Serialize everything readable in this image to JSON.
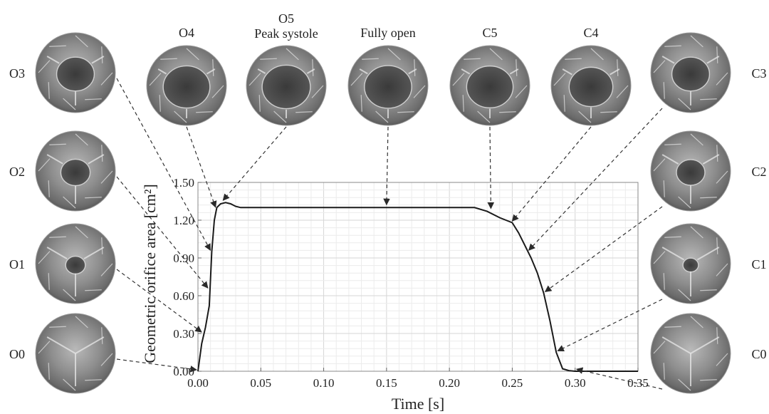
{
  "chart_data": {
    "type": "line",
    "xlabel": "Time [s]",
    "ylabel": "Geometric orifice area [cm²]",
    "xlim": [
      0,
      0.35
    ],
    "ylim": [
      0,
      1.5
    ],
    "xticks": [
      "0.00",
      "0.05",
      "0.10",
      "0.15",
      "0.20",
      "0.25",
      "0.30",
      "0.35"
    ],
    "yticks": [
      "0.00",
      "0.30",
      "0.60",
      "0.90",
      "1.20",
      "1.50"
    ],
    "grid": true,
    "line_color": "#1a1a1a",
    "series": [
      {
        "x": [
          0,
          0.003,
          0.006,
          0.009,
          0.011,
          0.013,
          0.015,
          0.018,
          0.022,
          0.026,
          0.03,
          0.034,
          0.04,
          0.06,
          0.1,
          0.15,
          0.2,
          0.22,
          0.23,
          0.24,
          0.25,
          0.255,
          0.26,
          0.265,
          0.27,
          0.275,
          0.28,
          0.285,
          0.29,
          0.295,
          0.3,
          0.35
        ],
        "y": [
          0.0,
          0.22,
          0.35,
          0.52,
          0.95,
          1.2,
          1.3,
          1.33,
          1.34,
          1.33,
          1.31,
          1.3,
          1.3,
          1.3,
          1.3,
          1.3,
          1.3,
          1.3,
          1.27,
          1.22,
          1.18,
          1.1,
          1.0,
          0.9,
          0.78,
          0.62,
          0.4,
          0.15,
          0.02,
          0.005,
          0.0,
          0.0
        ]
      }
    ],
    "annotations": [
      {
        "label": "O0",
        "side": "left",
        "x": 0.0,
        "y": 0.0
      },
      {
        "label": "O1",
        "side": "left",
        "x": 0.004,
        "y": 0.3
      },
      {
        "label": "O2",
        "side": "left",
        "x": 0.009,
        "y": 0.65
      },
      {
        "label": "O3",
        "side": "left",
        "x": 0.011,
        "y": 0.95
      },
      {
        "label": "O4",
        "side": "top",
        "x": 0.014,
        "y": 1.28
      },
      {
        "label": "O5\nPeak systole",
        "side": "top",
        "x": 0.02,
        "y": 1.335
      },
      {
        "label": "Fully open",
        "side": "top",
        "x": 0.15,
        "y": 1.3
      },
      {
        "label": "C5",
        "side": "top",
        "x": 0.233,
        "y": 1.27
      },
      {
        "label": "C4",
        "side": "top",
        "x": 0.25,
        "y": 1.17
      },
      {
        "label": "C3",
        "side": "right",
        "x": 0.262,
        "y": 0.95
      },
      {
        "label": "C2",
        "side": "right",
        "x": 0.275,
        "y": 0.62
      },
      {
        "label": "C1",
        "side": "right",
        "x": 0.285,
        "y": 0.15
      },
      {
        "label": "C0",
        "side": "right",
        "x": 0.3,
        "y": 0.005
      }
    ]
  }
}
